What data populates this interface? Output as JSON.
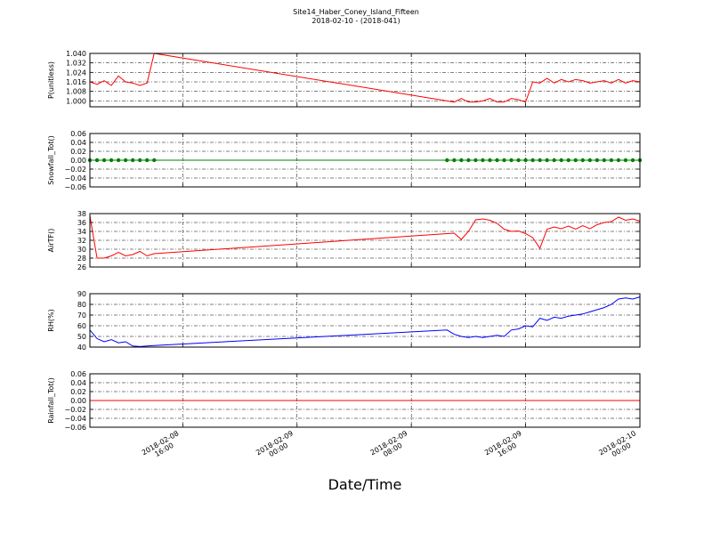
{
  "title": "Site14_Haber_Coney_Island_Fifteen",
  "subtitle": "2018-02-10 - (2018-041)",
  "x_label": "Date/Time",
  "chart_data": [
    {
      "type": "line",
      "ylabel": "P(unitless)",
      "color": "#ff0000",
      "marker": false,
      "grid": true,
      "xlim": [
        "2018-02-08 09:30",
        "2018-02-10 00:00"
      ],
      "xticks": [
        "2018-02-08 16:00",
        "2018-02-09 00:00",
        "2018-02-09 08:00",
        "2018-02-09 16:00",
        "2018-02-10 00:00"
      ],
      "x": [
        "2018-02-08 09:30",
        "2018-02-08 10:00",
        "2018-02-08 10:30",
        "2018-02-08 11:00",
        "2018-02-08 11:30",
        "2018-02-08 12:00",
        "2018-02-08 12:30",
        "2018-02-08 13:00",
        "2018-02-08 13:30",
        "2018-02-08 14:00",
        "2018-02-09 10:30",
        "2018-02-09 11:00",
        "2018-02-09 11:30",
        "2018-02-09 12:00",
        "2018-02-09 12:30",
        "2018-02-09 13:00",
        "2018-02-09 13:30",
        "2018-02-09 14:00",
        "2018-02-09 14:30",
        "2018-02-09 15:00",
        "2018-02-09 15:30",
        "2018-02-09 16:00",
        "2018-02-09 16:30",
        "2018-02-09 17:00",
        "2018-02-09 17:30",
        "2018-02-09 18:00",
        "2018-02-09 18:30",
        "2018-02-09 19:00",
        "2018-02-09 19:30",
        "2018-02-09 20:00",
        "2018-02-09 20:30",
        "2018-02-09 21:00",
        "2018-02-09 21:30",
        "2018-02-09 22:00",
        "2018-02-09 22:30",
        "2018-02-09 23:00",
        "2018-02-09 23:30",
        "2018-02-10 00:00"
      ],
      "values": [
        1.016,
        1.014,
        1.017,
        1.013,
        1.021,
        1.016,
        1.015,
        1.013,
        1.015,
        1.04,
        1.0,
        0.999,
        1.002,
        0.999,
        0.999,
        1.0,
        1.002,
        0.999,
        0.999,
        1.002,
        1.001,
        0.999,
        1.016,
        1.015,
        1.019,
        1.015,
        1.018,
        1.016,
        1.018,
        1.017,
        1.015,
        1.016,
        1.017,
        1.015,
        1.018,
        1.015,
        1.017,
        1.016
      ],
      "ylim": [
        0.995,
        1.04
      ],
      "yticks": [
        {
          "value": 1.0,
          "label": "1.000"
        },
        {
          "value": 1.008,
          "label": "1.008"
        },
        {
          "value": 1.016,
          "label": "1.016"
        },
        {
          "value": 1.024,
          "label": "1.024"
        },
        {
          "value": 1.032,
          "label": "1.032"
        },
        {
          "value": 1.04,
          "label": "1.040"
        }
      ]
    },
    {
      "type": "line",
      "ylabel": "Snowfall_Tot()",
      "color": "#008000",
      "marker": true,
      "grid": true,
      "xlim": [
        "2018-02-08 09:30",
        "2018-02-10 00:00"
      ],
      "xticks": [
        "2018-02-08 16:00",
        "2018-02-09 00:00",
        "2018-02-09 08:00",
        "2018-02-09 16:00",
        "2018-02-10 00:00"
      ],
      "x": [
        "2018-02-08 09:30",
        "2018-02-08 10:00",
        "2018-02-08 10:30",
        "2018-02-08 11:00",
        "2018-02-08 11:30",
        "2018-02-08 12:00",
        "2018-02-08 12:30",
        "2018-02-08 13:00",
        "2018-02-08 13:30",
        "2018-02-08 14:00",
        "2018-02-09 10:30",
        "2018-02-09 11:00",
        "2018-02-09 11:30",
        "2018-02-09 12:00",
        "2018-02-09 12:30",
        "2018-02-09 13:00",
        "2018-02-09 13:30",
        "2018-02-09 14:00",
        "2018-02-09 14:30",
        "2018-02-09 15:00",
        "2018-02-09 15:30",
        "2018-02-09 16:00",
        "2018-02-09 16:30",
        "2018-02-09 17:00",
        "2018-02-09 17:30",
        "2018-02-09 18:00",
        "2018-02-09 18:30",
        "2018-02-09 19:00",
        "2018-02-09 19:30",
        "2018-02-09 20:00",
        "2018-02-09 20:30",
        "2018-02-09 21:00",
        "2018-02-09 21:30",
        "2018-02-09 22:00",
        "2018-02-09 22:30",
        "2018-02-09 23:00",
        "2018-02-09 23:30",
        "2018-02-10 00:00"
      ],
      "values": [
        0,
        0,
        0,
        0,
        0,
        0,
        0,
        0,
        0,
        0,
        0,
        0,
        0,
        0,
        0,
        0,
        0,
        0,
        0,
        0,
        0,
        0,
        0,
        0,
        0,
        0,
        0,
        0,
        0,
        0,
        0,
        0,
        0,
        0,
        0,
        0,
        0,
        0
      ],
      "ylim": [
        -0.06,
        0.06
      ],
      "yticks": [
        {
          "value": -0.06,
          "label": "−0.06"
        },
        {
          "value": -0.04,
          "label": "−0.04"
        },
        {
          "value": -0.02,
          "label": "−0.02"
        },
        {
          "value": 0,
          "label": "0.00"
        },
        {
          "value": 0.02,
          "label": "0.02"
        },
        {
          "value": 0.04,
          "label": "0.04"
        },
        {
          "value": 0.06,
          "label": "0.06"
        }
      ]
    },
    {
      "type": "line",
      "ylabel": "AirTF()",
      "color": "#ff0000",
      "marker": false,
      "grid": true,
      "xlim": [
        "2018-02-08 09:30",
        "2018-02-10 00:00"
      ],
      "xticks": [
        "2018-02-08 16:00",
        "2018-02-09 00:00",
        "2018-02-09 08:00",
        "2018-02-09 16:00",
        "2018-02-10 00:00"
      ],
      "x": [
        "2018-02-08 09:30",
        "2018-02-08 10:00",
        "2018-02-08 10:30",
        "2018-02-08 11:00",
        "2018-02-08 11:30",
        "2018-02-08 12:00",
        "2018-02-08 12:30",
        "2018-02-08 13:00",
        "2018-02-08 13:30",
        "2018-02-08 14:00",
        "2018-02-09 10:30",
        "2018-02-09 11:00",
        "2018-02-09 11:30",
        "2018-02-09 12:00",
        "2018-02-09 12:30",
        "2018-02-09 13:00",
        "2018-02-09 13:30",
        "2018-02-09 14:00",
        "2018-02-09 14:30",
        "2018-02-09 15:00",
        "2018-02-09 15:30",
        "2018-02-09 16:00",
        "2018-02-09 16:30",
        "2018-02-09 17:00",
        "2018-02-09 17:30",
        "2018-02-09 18:00",
        "2018-02-09 18:30",
        "2018-02-09 19:00",
        "2018-02-09 19:30",
        "2018-02-09 20:00",
        "2018-02-09 20:30",
        "2018-02-09 21:00",
        "2018-02-09 21:30",
        "2018-02-09 22:00",
        "2018-02-09 22:30",
        "2018-02-09 23:00",
        "2018-02-09 23:30",
        "2018-02-10 00:00"
      ],
      "values": [
        37.5,
        28,
        28,
        28.5,
        29.3,
        28.5,
        28.8,
        29.5,
        28.5,
        29,
        33.5,
        33.6,
        32.2,
        34.0,
        36.6,
        36.8,
        36.5,
        35.8,
        34.5,
        34.0,
        34.1,
        33.5,
        32.6,
        30.2,
        34.5,
        35.0,
        34.6,
        35.2,
        34.5,
        35.3,
        34.6,
        35.5,
        36.0,
        36.2,
        37.2,
        36.5,
        36.8,
        36.3
      ],
      "ylim": [
        26,
        38
      ],
      "yticks": [
        26,
        28,
        30,
        32,
        34,
        36,
        38
      ]
    },
    {
      "type": "line",
      "ylabel": "RH(%)",
      "color": "#0000ff",
      "marker": false,
      "grid": true,
      "xlim": [
        "2018-02-08 09:30",
        "2018-02-10 00:00"
      ],
      "xticks": [
        "2018-02-08 16:00",
        "2018-02-09 00:00",
        "2018-02-09 08:00",
        "2018-02-09 16:00",
        "2018-02-10 00:00"
      ],
      "x": [
        "2018-02-08 09:30",
        "2018-02-08 10:00",
        "2018-02-08 10:30",
        "2018-02-08 11:00",
        "2018-02-08 11:30",
        "2018-02-08 12:00",
        "2018-02-08 12:30",
        "2018-02-08 13:00",
        "2018-02-08 13:30",
        "2018-02-08 14:00",
        "2018-02-09 10:30",
        "2018-02-09 11:00",
        "2018-02-09 11:30",
        "2018-02-09 12:00",
        "2018-02-09 12:30",
        "2018-02-09 13:00",
        "2018-02-09 13:30",
        "2018-02-09 14:00",
        "2018-02-09 14:30",
        "2018-02-09 15:00",
        "2018-02-09 15:30",
        "2018-02-09 16:00",
        "2018-02-09 16:30",
        "2018-02-09 17:00",
        "2018-02-09 17:30",
        "2018-02-09 18:00",
        "2018-02-09 18:30",
        "2018-02-09 19:00",
        "2018-02-09 19:30",
        "2018-02-09 20:00",
        "2018-02-09 20:30",
        "2018-02-09 21:00",
        "2018-02-09 21:30",
        "2018-02-09 22:00",
        "2018-02-09 22:30",
        "2018-02-09 23:00",
        "2018-02-09 23:30",
        "2018-02-10 00:00"
      ],
      "values": [
        56,
        48,
        45,
        47,
        44,
        45,
        41,
        40.5,
        41,
        41.5,
        56,
        52,
        50,
        49,
        50,
        49,
        50,
        51,
        50,
        56,
        57,
        60,
        59,
        67,
        65,
        68,
        67,
        69,
        70,
        71,
        73,
        75,
        77,
        80,
        85,
        86,
        85,
        87
      ],
      "ylim": [
        40,
        90
      ],
      "yticks": [
        40,
        50,
        60,
        70,
        80,
        90
      ]
    },
    {
      "type": "line",
      "ylabel": "Rainfall_Tot()",
      "color": "#ff0000",
      "marker": false,
      "grid": true,
      "xlim": [
        "2018-02-08 09:30",
        "2018-02-10 00:00"
      ],
      "xticks": [
        "2018-02-08 16:00",
        "2018-02-09 00:00",
        "2018-02-09 08:00",
        "2018-02-09 16:00",
        "2018-02-10 00:00"
      ],
      "x": [
        "2018-02-08 09:30",
        "2018-02-08 10:00",
        "2018-02-08 10:30",
        "2018-02-08 11:00",
        "2018-02-08 11:30",
        "2018-02-08 12:00",
        "2018-02-08 12:30",
        "2018-02-08 13:00",
        "2018-02-08 13:30",
        "2018-02-08 14:00",
        "2018-02-09 10:30",
        "2018-02-09 11:00",
        "2018-02-09 11:30",
        "2018-02-09 12:00",
        "2018-02-09 12:30",
        "2018-02-09 13:00",
        "2018-02-09 13:30",
        "2018-02-09 14:00",
        "2018-02-09 14:30",
        "2018-02-09 15:00",
        "2018-02-09 15:30",
        "2018-02-09 16:00",
        "2018-02-09 16:30",
        "2018-02-09 17:00",
        "2018-02-09 17:30",
        "2018-02-09 18:00",
        "2018-02-09 18:30",
        "2018-02-09 19:00",
        "2018-02-09 19:30",
        "2018-02-09 20:00",
        "2018-02-09 20:30",
        "2018-02-09 21:00",
        "2018-02-09 21:30",
        "2018-02-09 22:00",
        "2018-02-09 22:30",
        "2018-02-09 23:00",
        "2018-02-09 23:30",
        "2018-02-10 00:00"
      ],
      "values": [
        0,
        0,
        0,
        0,
        0,
        0,
        0,
        0,
        0,
        0,
        0,
        0,
        0,
        0,
        0,
        0,
        0,
        0,
        0,
        0,
        0,
        0,
        0,
        0,
        0,
        0,
        0,
        0,
        0,
        0,
        0,
        0,
        0,
        0,
        0,
        0,
        0,
        0
      ],
      "ylim": [
        -0.06,
        0.06
      ],
      "yticks": [
        {
          "value": -0.06,
          "label": "−0.06"
        },
        {
          "value": -0.04,
          "label": "−0.04"
        },
        {
          "value": -0.02,
          "label": "−0.02"
        },
        {
          "value": 0,
          "label": "0.00"
        },
        {
          "value": 0.02,
          "label": "0.02"
        },
        {
          "value": 0.04,
          "label": "0.04"
        },
        {
          "value": 0.06,
          "label": "0.06"
        }
      ]
    }
  ]
}
